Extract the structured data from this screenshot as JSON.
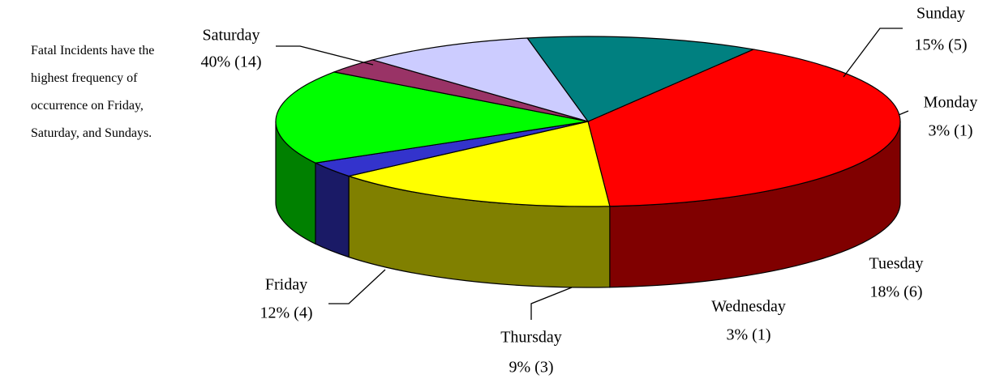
{
  "chart_data": {
    "type": "pie",
    "text": "Fatal Incidents have the highest frequency of occurrence on Friday, Saturday, and Sundays.",
    "categories": [
      "Saturday",
      "Sunday",
      "Monday",
      "Tuesday",
      "Wednesday",
      "Thursday",
      "Friday"
    ],
    "values": [
      40,
      15,
      3,
      18,
      3,
      9,
      12
    ],
    "value_labels": [
      "40% (14)",
      "15% (5)",
      "3% (1)",
      "18% (6)",
      "3% (1)",
      "9% (3)",
      "12% (4)"
    ],
    "colors": [
      "#ff0000",
      "#ffff00",
      "#3333cc",
      "#00ff00",
      "#993366",
      "#ccccff",
      "#008080"
    ],
    "side_colors": [
      "#800000",
      "#808000",
      "#1a1a66",
      "#008000",
      "#4d1a33",
      "#666680",
      "#004040"
    ]
  }
}
